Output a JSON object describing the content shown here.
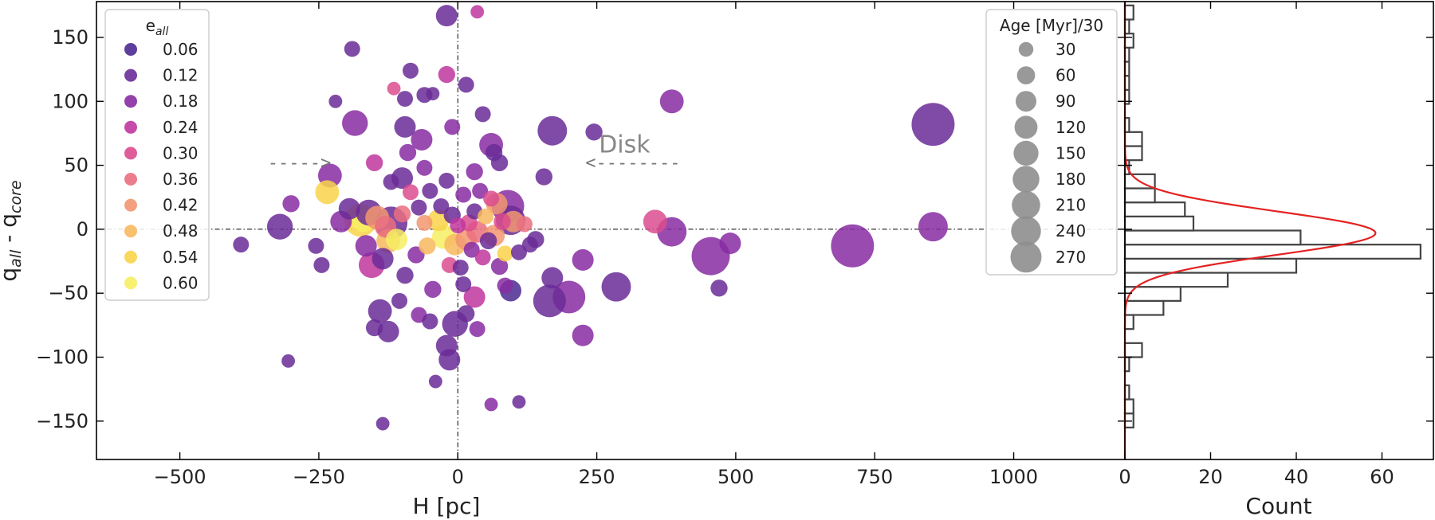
{
  "chart_data": [
    {
      "type": "scatter",
      "title": "",
      "xlabel": "H [pc]",
      "ylabel_main": "q",
      "ylabel_sub1": "all",
      "ylabel_mid": " - q",
      "ylabel_sub2": "core",
      "xlim": [
        -650,
        1200
      ],
      "ylim": [
        -180,
        178
      ],
      "xticks": [
        -500,
        -250,
        0,
        250,
        500,
        750,
        1000
      ],
      "xtick_labels": [
        "−500",
        "−250",
        "0",
        "250",
        "500",
        "750",
        "1000"
      ],
      "yticks": [
        -150,
        -100,
        -50,
        0,
        50,
        100,
        150
      ],
      "ytick_labels": [
        "−150",
        "−100",
        "−50",
        "0",
        "50",
        "100",
        "150"
      ],
      "color_legend": {
        "title_main": "e",
        "title_sub": "all",
        "values": [
          0.06,
          0.12,
          0.18,
          0.24,
          0.3,
          0.36,
          0.42,
          0.48,
          0.54,
          0.6
        ],
        "labels": [
          "0.06",
          "0.12",
          "0.18",
          "0.24",
          "0.30",
          "0.36",
          "0.42",
          "0.48",
          "0.54",
          "0.60"
        ],
        "colors": [
          "#4b2991",
          "#6a2c97",
          "#872ca2",
          "#c0369d",
          "#db4c8e",
          "#ea6f7f",
          "#f29670",
          "#f8b95f",
          "#f9d44a",
          "#f6ee62"
        ]
      },
      "size_legend": {
        "title": "Age [Myr]/30",
        "values": [
          30,
          60,
          90,
          120,
          150,
          180,
          210,
          240,
          270
        ],
        "labels": [
          "30",
          "60",
          "90",
          "120",
          "150",
          "180",
          "210",
          "240",
          "270"
        ],
        "color": "#8e8e8e"
      },
      "annotations": [
        {
          "text": "Disk",
          "x": 300,
          "y": 60
        },
        {
          "text": "----->",
          "x": -285,
          "y": 52
        },
        {
          "text": "<--------",
          "x": 315,
          "y": 52
        }
      ],
      "reference_lines": {
        "x": 0,
        "y": 0
      },
      "points": [
        {
          "x": 855,
          "y": 82,
          "age": 270,
          "e": 0.12
        },
        {
          "x": 710,
          "y": -13,
          "age": 270,
          "e": 0.18
        },
        {
          "x": 455,
          "y": -21,
          "age": 210,
          "e": 0.18
        },
        {
          "x": 855,
          "y": 2,
          "age": 120,
          "e": 0.18
        },
        {
          "x": 385,
          "y": -2,
          "age": 120,
          "e": 0.18
        },
        {
          "x": 385,
          "y": 100,
          "age": 75,
          "e": 0.18
        },
        {
          "x": 490,
          "y": -11,
          "age": 60,
          "e": 0.18
        },
        {
          "x": 470,
          "y": -46,
          "age": 35,
          "e": 0.12
        },
        {
          "x": 355,
          "y": 6,
          "age": 75,
          "e": 0.3
        },
        {
          "x": 285,
          "y": -45,
          "age": 120,
          "e": 0.12
        },
        {
          "x": 245,
          "y": 76,
          "age": 35,
          "e": 0.12
        },
        {
          "x": 225,
          "y": -83,
          "age": 60,
          "e": 0.18
        },
        {
          "x": 225,
          "y": -24,
          "age": 60,
          "e": 0.18
        },
        {
          "x": 200,
          "y": -53,
          "age": 150,
          "e": 0.18
        },
        {
          "x": 165,
          "y": -56,
          "age": 150,
          "e": 0.12
        },
        {
          "x": 170,
          "y": 77,
          "age": 120,
          "e": 0.12
        },
        {
          "x": 170,
          "y": -38,
          "age": 60,
          "e": 0.12
        },
        {
          "x": 155,
          "y": 41,
          "age": 35,
          "e": 0.12
        },
        {
          "x": 110,
          "y": -135,
          "age": 20,
          "e": 0.12
        },
        {
          "x": 140,
          "y": -8,
          "age": 35,
          "e": 0.12
        },
        {
          "x": 95,
          "y": 7,
          "age": 120,
          "e": 0.12
        },
        {
          "x": 95,
          "y": -48,
          "age": 60,
          "e": 0.06
        },
        {
          "x": 90,
          "y": 18,
          "age": 150,
          "e": 0.18
        },
        {
          "x": 85,
          "y": -44,
          "age": 30,
          "e": 0.18
        },
        {
          "x": 60,
          "y": 66,
          "age": 75,
          "e": 0.18
        },
        {
          "x": 75,
          "y": 52,
          "age": 35,
          "e": 0.12
        },
        {
          "x": 65,
          "y": 60,
          "age": 35,
          "e": 0.12
        },
        {
          "x": 60,
          "y": -137,
          "age": 20,
          "e": 0.18
        },
        {
          "x": 35,
          "y": 170,
          "age": 20,
          "e": 0.24
        },
        {
          "x": 30,
          "y": -53,
          "age": 60,
          "e": 0.24
        },
        {
          "x": 15,
          "y": 113,
          "age": 30,
          "e": 0.12
        },
        {
          "x": 15,
          "y": -66,
          "age": 35,
          "e": 0.12
        },
        {
          "x": -5,
          "y": -74,
          "age": 90,
          "e": 0.12
        },
        {
          "x": -20,
          "y": -91,
          "age": 60,
          "e": 0.12
        },
        {
          "x": -15,
          "y": -102,
          "age": 60,
          "e": 0.12
        },
        {
          "x": -40,
          "y": -119,
          "age": 20,
          "e": 0.12
        },
        {
          "x": -20,
          "y": 167,
          "age": 60,
          "e": 0.12
        },
        {
          "x": -20,
          "y": 121,
          "age": 35,
          "e": 0.24
        },
        {
          "x": -45,
          "y": 106,
          "age": 20,
          "e": 0.12
        },
        {
          "x": -60,
          "y": 105,
          "age": 30,
          "e": 0.12
        },
        {
          "x": -95,
          "y": 102,
          "age": 30,
          "e": 0.12
        },
        {
          "x": -85,
          "y": 124,
          "age": 30,
          "e": 0.12
        },
        {
          "x": -115,
          "y": 110,
          "age": 20,
          "e": 0.3
        },
        {
          "x": -95,
          "y": 80,
          "age": 60,
          "e": 0.12
        },
        {
          "x": -65,
          "y": 70,
          "age": 60,
          "e": 0.18
        },
        {
          "x": -150,
          "y": 52,
          "age": 35,
          "e": 0.24
        },
        {
          "x": -185,
          "y": 83,
          "age": 90,
          "e": 0.18
        },
        {
          "x": -190,
          "y": 141,
          "age": 30,
          "e": 0.12
        },
        {
          "x": -220,
          "y": 100,
          "age": 20,
          "e": 0.12
        },
        {
          "x": -230,
          "y": 42,
          "age": 75,
          "e": 0.18
        },
        {
          "x": -235,
          "y": 29,
          "age": 75,
          "e": 0.54
        },
        {
          "x": -300,
          "y": 20,
          "age": 35,
          "e": 0.18
        },
        {
          "x": -320,
          "y": 2,
          "age": 90,
          "e": 0.12
        },
        {
          "x": -390,
          "y": -12,
          "age": 30,
          "e": 0.12
        },
        {
          "x": -305,
          "y": -103,
          "age": 20,
          "e": 0.12
        },
        {
          "x": -255,
          "y": -13,
          "age": 30,
          "e": 0.12
        },
        {
          "x": -245,
          "y": -28,
          "age": 30,
          "e": 0.12
        },
        {
          "x": -210,
          "y": 6,
          "age": 60,
          "e": 0.18
        },
        {
          "x": -195,
          "y": 16,
          "age": 60,
          "e": 0.12
        },
        {
          "x": -175,
          "y": 7,
          "age": 150,
          "e": 0.54
        },
        {
          "x": -170,
          "y": 8,
          "age": 90,
          "e": 0.6
        },
        {
          "x": -165,
          "y": -13,
          "age": 60,
          "e": 0.18
        },
        {
          "x": -160,
          "y": 13,
          "age": 90,
          "e": 0.12
        },
        {
          "x": -155,
          "y": -28,
          "age": 90,
          "e": 0.24
        },
        {
          "x": -145,
          "y": 9,
          "age": 75,
          "e": 0.42
        },
        {
          "x": -135,
          "y": -23,
          "age": 60,
          "e": 0.12
        },
        {
          "x": -130,
          "y": 2,
          "age": 60,
          "e": 0.36
        },
        {
          "x": -125,
          "y": -9,
          "age": 75,
          "e": 0.48
        },
        {
          "x": -120,
          "y": 5,
          "age": 150,
          "e": 0.12
        },
        {
          "x": -110,
          "y": -8,
          "age": 60,
          "e": 0.6
        },
        {
          "x": -100,
          "y": 12,
          "age": 35,
          "e": 0.36
        },
        {
          "x": -95,
          "y": -36,
          "age": 35,
          "e": 0.12
        },
        {
          "x": -85,
          "y": 29,
          "age": 30,
          "e": 0.3
        },
        {
          "x": -75,
          "y": -20,
          "age": 35,
          "e": 0.18
        },
        {
          "x": -70,
          "y": 17,
          "age": 30,
          "e": 0.12
        },
        {
          "x": -60,
          "y": 5,
          "age": 30,
          "e": 0.42
        },
        {
          "x": -55,
          "y": -13,
          "age": 35,
          "e": 0.48
        },
        {
          "x": -50,
          "y": 30,
          "age": 30,
          "e": 0.12
        },
        {
          "x": -45,
          "y": -47,
          "age": 35,
          "e": 0.18
        },
        {
          "x": -35,
          "y": 7,
          "age": 60,
          "e": 0.54
        },
        {
          "x": -30,
          "y": 18,
          "age": 30,
          "e": 0.12
        },
        {
          "x": -25,
          "y": -6,
          "age": 75,
          "e": 0.6
        },
        {
          "x": -20,
          "y": 38,
          "age": 30,
          "e": 0.12
        },
        {
          "x": -15,
          "y": -28,
          "age": 30,
          "e": 0.3
        },
        {
          "x": -10,
          "y": 11,
          "age": 35,
          "e": 0.12
        },
        {
          "x": -5,
          "y": -12,
          "age": 60,
          "e": 0.48
        },
        {
          "x": 0,
          "y": 3,
          "age": 30,
          "e": 0.24
        },
        {
          "x": 5,
          "y": -30,
          "age": 30,
          "e": 0.12
        },
        {
          "x": 10,
          "y": 27,
          "age": 30,
          "e": 0.18
        },
        {
          "x": 15,
          "y": -8,
          "age": 60,
          "e": 0.42
        },
        {
          "x": 20,
          "y": 5,
          "age": 35,
          "e": 0.3
        },
        {
          "x": 25,
          "y": -16,
          "age": 30,
          "e": 0.18
        },
        {
          "x": 30,
          "y": 14,
          "age": 30,
          "e": 0.12
        },
        {
          "x": 35,
          "y": -2,
          "age": 60,
          "e": 0.36
        },
        {
          "x": 40,
          "y": 30,
          "age": 30,
          "e": 0.18
        },
        {
          "x": 45,
          "y": -22,
          "age": 30,
          "e": 0.24
        },
        {
          "x": 50,
          "y": 10,
          "age": 30,
          "e": 0.48
        },
        {
          "x": 55,
          "y": -9,
          "age": 35,
          "e": 0.12
        },
        {
          "x": 60,
          "y": 24,
          "age": 30,
          "e": 0.3
        },
        {
          "x": 65,
          "y": -5,
          "age": 60,
          "e": 0.42
        },
        {
          "x": 70,
          "y": 20,
          "age": 60,
          "e": 0.42
        },
        {
          "x": 75,
          "y": -29,
          "age": 35,
          "e": 0.18
        },
        {
          "x": 80,
          "y": 6,
          "age": 35,
          "e": 0.3
        },
        {
          "x": 85,
          "y": -19,
          "age": 30,
          "e": 0.54
        },
        {
          "x": 100,
          "y": 6,
          "age": 60,
          "e": 0.42
        },
        {
          "x": 110,
          "y": -18,
          "age": 30,
          "e": 0.12
        },
        {
          "x": 120,
          "y": 4,
          "age": 30,
          "e": 0.36
        },
        {
          "x": 130,
          "y": -12,
          "age": 30,
          "e": 0.12
        },
        {
          "x": -140,
          "y": -64,
          "age": 75,
          "e": 0.12
        },
        {
          "x": -150,
          "y": -77,
          "age": 35,
          "e": 0.12
        },
        {
          "x": -125,
          "y": -80,
          "age": 60,
          "e": 0.12
        },
        {
          "x": -105,
          "y": -56,
          "age": 30,
          "e": 0.12
        },
        {
          "x": -70,
          "y": -67,
          "age": 30,
          "e": 0.18
        },
        {
          "x": -50,
          "y": -72,
          "age": 30,
          "e": 0.12
        },
        {
          "x": 35,
          "y": -78,
          "age": 30,
          "e": 0.18
        },
        {
          "x": -135,
          "y": -152,
          "age": 20,
          "e": 0.12
        },
        {
          "x": -90,
          "y": 60,
          "age": 35,
          "e": 0.18
        },
        {
          "x": -100,
          "y": 40,
          "age": 60,
          "e": 0.12
        },
        {
          "x": -60,
          "y": 48,
          "age": 30,
          "e": 0.18
        },
        {
          "x": -120,
          "y": 37,
          "age": 30,
          "e": 0.12
        },
        {
          "x": 45,
          "y": 90,
          "age": 30,
          "e": 0.12
        },
        {
          "x": -10,
          "y": 80,
          "age": 30,
          "e": 0.18
        },
        {
          "x": 30,
          "y": 45,
          "age": 35,
          "e": 0.18
        },
        {
          "x": 10,
          "y": -43,
          "age": 30,
          "e": 0.12
        }
      ]
    },
    {
      "type": "bar",
      "orientation": "horizontal",
      "xlabel": "Count",
      "xlim": [
        0,
        72
      ],
      "xticks": [
        0,
        20,
        40,
        60
      ],
      "xtick_labels": [
        "0",
        "20",
        "40",
        "60"
      ],
      "bin_edges": [
        -155,
        -144,
        -133,
        -122,
        -111,
        -100,
        -89,
        -78,
        -67,
        -56,
        -45,
        -34,
        -23,
        -12,
        -1,
        10,
        21,
        32,
        43,
        54,
        65,
        76,
        87,
        98,
        109,
        120,
        131,
        142,
        153,
        164,
        175
      ],
      "values": [
        2,
        2,
        1,
        0,
        1,
        4,
        0,
        2,
        9,
        13,
        24,
        40,
        69,
        41,
        16,
        14,
        7,
        7,
        1,
        4,
        4,
        1,
        0,
        1,
        1,
        1,
        1,
        2,
        1,
        2
      ],
      "fit_curve": {
        "type": "gaussian",
        "color": "#e32222",
        "amplitude": 58.5,
        "mean": -3,
        "sigma": 17
      }
    }
  ]
}
